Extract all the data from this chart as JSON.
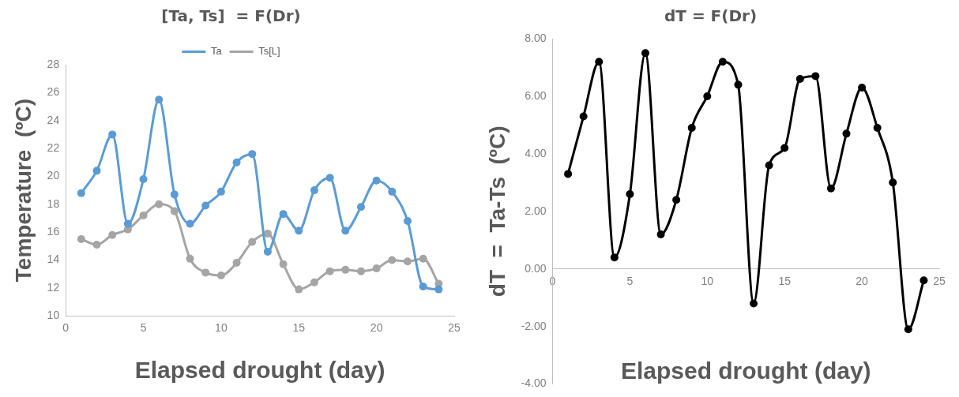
{
  "chart_data": [
    {
      "type": "line",
      "title": "[Ta, Ts]  = F(Dr)",
      "xlabel": "Elapsed drought (day)",
      "ylabel": "Temperature  (ºC)",
      "legend": "top",
      "marker": "circle",
      "x": [
        1,
        2,
        3,
        4,
        5,
        6,
        7,
        8,
        9,
        10,
        11,
        12,
        13,
        14,
        15,
        16,
        17,
        18,
        19,
        20,
        21,
        22,
        23,
        24
      ],
      "series": [
        {
          "name": "Ta",
          "color": "#5b9bd5",
          "values": [
            18.8,
            20.4,
            23.0,
            16.6,
            19.8,
            25.5,
            18.7,
            16.6,
            17.9,
            18.9,
            21.0,
            21.6,
            14.6,
            17.3,
            16.1,
            19.0,
            19.9,
            16.1,
            17.8,
            19.7,
            18.9,
            16.8,
            12.1,
            11.9
          ]
        },
        {
          "name": "Ts[L]",
          "color": "#a5a5a5",
          "values": [
            15.5,
            15.1,
            15.8,
            16.2,
            17.2,
            18.0,
            17.5,
            14.1,
            13.1,
            12.9,
            13.8,
            15.3,
            15.9,
            13.7,
            11.9,
            12.4,
            13.2,
            13.3,
            13.2,
            13.4,
            14.0,
            13.9,
            14.1,
            12.3
          ]
        }
      ],
      "xlim": [
        0,
        25
      ],
      "xticks": [
        0,
        5,
        10,
        15,
        20,
        25
      ],
      "ylim": [
        10,
        28
      ],
      "yticks": [
        10,
        12,
        14,
        16,
        18,
        20,
        22,
        24,
        26,
        28
      ]
    },
    {
      "type": "line",
      "title": "dT = F(Dr)",
      "xlabel": "Elapsed drought (day)",
      "ylabel": "dT  =  Ta-Ts  (ºC)",
      "marker": "circle",
      "x": [
        1,
        2,
        3,
        4,
        5,
        6,
        7,
        8,
        9,
        10,
        11,
        12,
        13,
        14,
        15,
        16,
        17,
        18,
        19,
        20,
        21,
        22,
        23,
        24
      ],
      "series": [
        {
          "color": "#000000",
          "values": [
            3.3,
            5.3,
            7.2,
            0.4,
            2.6,
            7.5,
            1.2,
            2.4,
            4.9,
            6.0,
            7.2,
            6.4,
            -1.2,
            3.6,
            4.2,
            6.6,
            6.7,
            2.8,
            4.7,
            6.3,
            4.9,
            3.0,
            -2.1,
            -0.4
          ]
        }
      ],
      "xlim": [
        0,
        25
      ],
      "xticks": [
        0,
        5,
        10,
        15,
        20,
        25
      ],
      "ylim": [
        -4,
        8
      ],
      "yticks": [
        {
          "value": -4,
          "label": "-4.00"
        },
        {
          "value": -2,
          "label": "-2.00"
        },
        {
          "value": 0,
          "label": "0.00"
        },
        {
          "value": 2,
          "label": "2.00"
        },
        {
          "value": 4,
          "label": "4.00"
        },
        {
          "value": 6,
          "label": "6.00"
        },
        {
          "value": 8,
          "label": "8.00"
        }
      ]
    }
  ]
}
